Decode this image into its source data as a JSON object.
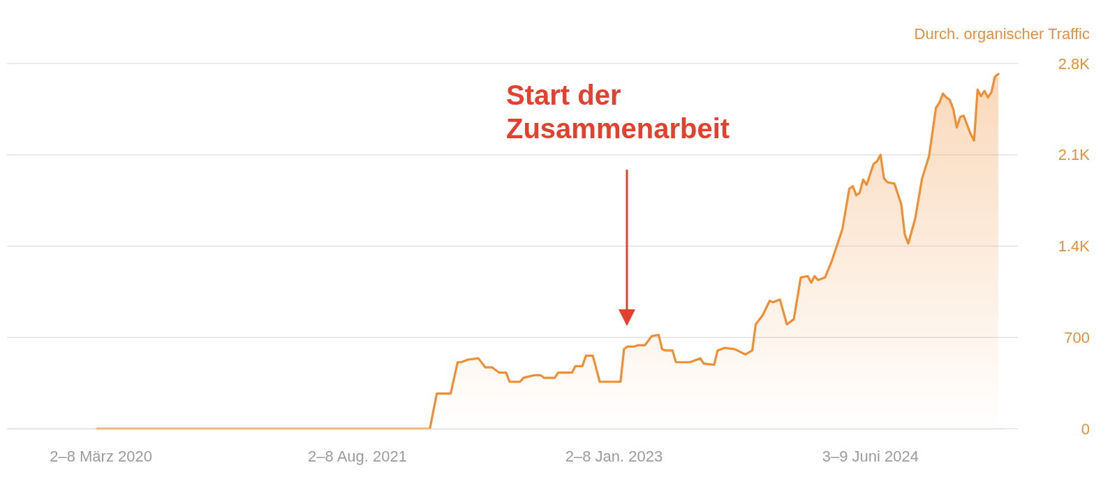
{
  "chart_data": {
    "type": "area",
    "ylabel": "Durch. organischer Traffic",
    "x": [
      "2020-02-24",
      "2021-12-27",
      "2022-01-10",
      "2022-02-07",
      "2022-02-21",
      "2022-02-28",
      "2022-03-14",
      "2022-04-04",
      "2022-04-18",
      "2022-05-02",
      "2022-05-16",
      "2022-05-30",
      "2022-06-06",
      "2022-06-27",
      "2022-07-04",
      "2022-07-25",
      "2022-08-08",
      "2022-08-15",
      "2022-09-05",
      "2022-09-12",
      "2022-10-10",
      "2022-10-17",
      "2022-10-31",
      "2022-11-07",
      "2022-11-21",
      "2022-12-05",
      "2023-01-16",
      "2023-01-23",
      "2023-01-30",
      "2023-02-13",
      "2023-02-20",
      "2023-03-06",
      "2023-03-20",
      "2023-04-03",
      "2023-04-10",
      "2023-04-17",
      "2023-05-01",
      "2023-05-08",
      "2023-06-05",
      "2023-06-26",
      "2023-07-03",
      "2023-07-24",
      "2023-07-31",
      "2023-08-14",
      "2023-09-04",
      "2023-09-25",
      "2023-10-09",
      "2023-10-16",
      "2023-10-30",
      "2023-11-13",
      "2023-11-20",
      "2023-12-04",
      "2023-12-18",
      "2024-01-01",
      "2024-01-15",
      "2024-01-29",
      "2024-02-05",
      "2024-02-12",
      "2024-02-19",
      "2024-03-04",
      "2024-03-18",
      "2024-04-08",
      "2024-04-22",
      "2024-04-29",
      "2024-05-06",
      "2024-05-13",
      "2024-05-20",
      "2024-05-27",
      "2024-06-10",
      "2024-06-17",
      "2024-06-24",
      "2024-07-01",
      "2024-07-08",
      "2024-07-22",
      "2024-08-05",
      "2024-08-12",
      "2024-08-19",
      "2024-09-02",
      "2024-09-16",
      "2024-09-30",
      "2024-10-14",
      "2024-10-21",
      "2024-10-28",
      "2024-11-04",
      "2024-11-11",
      "2024-11-18",
      "2024-11-25",
      "2024-12-02",
      "2024-12-09",
      "2024-12-23",
      "2024-12-30",
      "2025-01-06",
      "2025-01-13",
      "2025-01-20",
      "2025-01-27",
      "2025-02-03",
      "2025-02-10",
      "2025-02-17"
    ],
    "series": [
      {
        "color": "#ee8e35",
        "values": [
          0,
          0,
          270,
          270,
          510,
          510,
          530,
          540,
          470,
          470,
          430,
          430,
          360,
          360,
          390,
          410,
          410,
          390,
          390,
          430,
          430,
          480,
          480,
          560,
          560,
          360,
          360,
          610,
          630,
          630,
          640,
          640,
          710,
          720,
          610,
          600,
          600,
          510,
          510,
          540,
          500,
          490,
          600,
          620,
          610,
          570,
          600,
          800,
          870,
          980,
          970,
          990,
          800,
          840,
          1160,
          1170,
          1120,
          1170,
          1140,
          1160,
          1290,
          1530,
          1840,
          1860,
          1790,
          1810,
          1910,
          1870,
          2030,
          2050,
          2100,
          1920,
          1890,
          1880,
          1720,
          1490,
          1420,
          1610,
          1920,
          2090,
          2460,
          2500,
          2570,
          2540,
          2520,
          2450,
          2310,
          2390,
          2400,
          2260,
          2210,
          2600,
          2550,
          2590,
          2540,
          2580,
          2700,
          2720
        ]
      }
    ],
    "xlim": [
      "2019-08-26",
      "2025-03-03"
    ],
    "xticks": [
      {
        "value": "2020-03-02",
        "label": "2–8 März 2020"
      },
      {
        "value": "2021-08-02",
        "label": "2–8 Aug. 2021"
      },
      {
        "value": "2023-01-02",
        "label": "2–8 Jan. 2023"
      },
      {
        "value": "2024-06-03",
        "label": "3–9 Juni 2024"
      }
    ],
    "ylim": [
      0,
      2800
    ],
    "yticks": [
      0,
      700,
      {
        "value": 1400,
        "label": "1.4K"
      },
      {
        "value": 2100,
        "label": "2.1K"
      },
      {
        "value": 2800,
        "label": "2.8K"
      }
    ],
    "grid": "y",
    "annotations": [
      "Start der Zusammenarbeit"
    ]
  }
}
